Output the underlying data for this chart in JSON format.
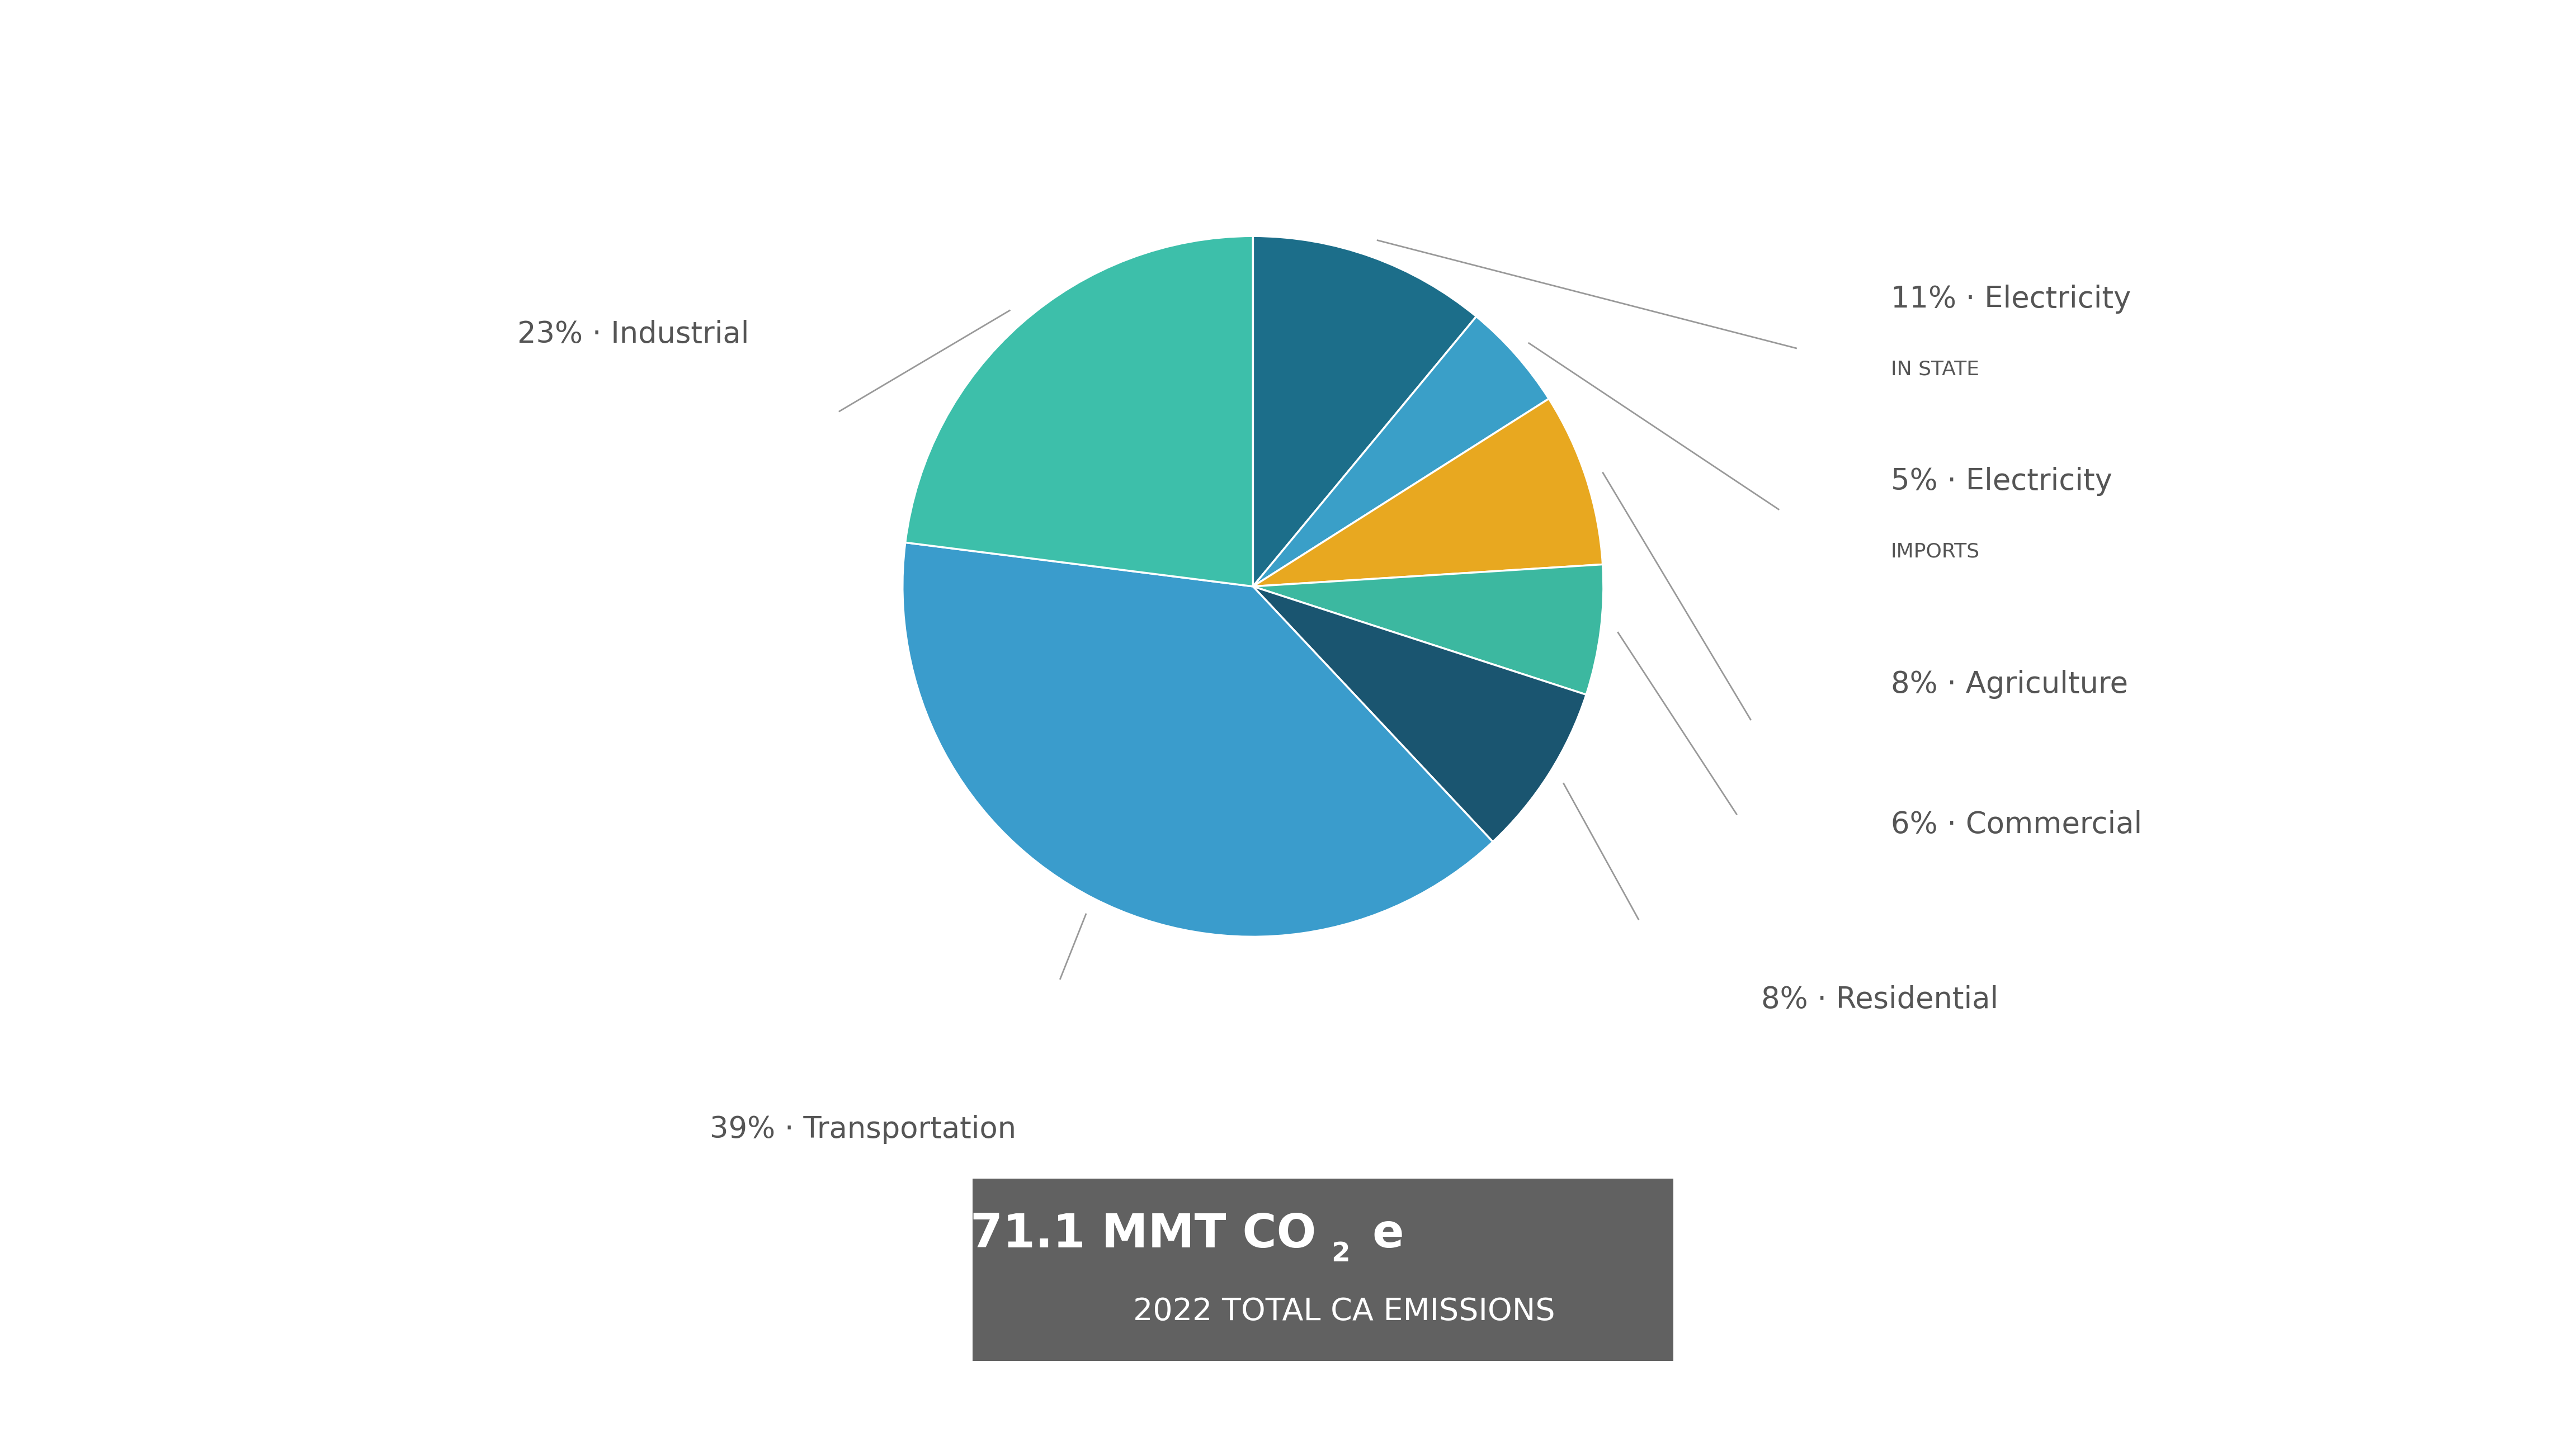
{
  "sectors": [
    {
      "pct": 11,
      "color": "#1c6e8a",
      "label_short": "11% · Electricity",
      "label_sub": "IN STATE"
    },
    {
      "pct": 5,
      "color": "#3a9fc8",
      "label_short": "5% · Electricity",
      "label_sub": "IMPORTS"
    },
    {
      "pct": 8,
      "color": "#e8a820",
      "label_short": "8% · Agriculture",
      "label_sub": ""
    },
    {
      "pct": 6,
      "color": "#3cb8a0",
      "label_short": "6% · Commercial",
      "label_sub": ""
    },
    {
      "pct": 8,
      "color": "#1a5570",
      "label_short": "8% · Residential",
      "label_sub": ""
    },
    {
      "pct": 39,
      "color": "#3a9ccc",
      "label_short": "39% · Transportation",
      "label_sub": ""
    },
    {
      "pct": 23,
      "color": "#3dbfaa",
      "label_short": "23% · Industrial",
      "label_sub": ""
    }
  ],
  "total_text_line2": "2022 TOTAL CA EMISSIONS",
  "box_color": "#616161",
  "text_color": "#555555",
  "background_color": "#ffffff",
  "label_fontsize": 38,
  "sublabel_fontsize": 26,
  "total_fontsize_big": 60,
  "total_fontsize_small": 40,
  "startangle": 90
}
